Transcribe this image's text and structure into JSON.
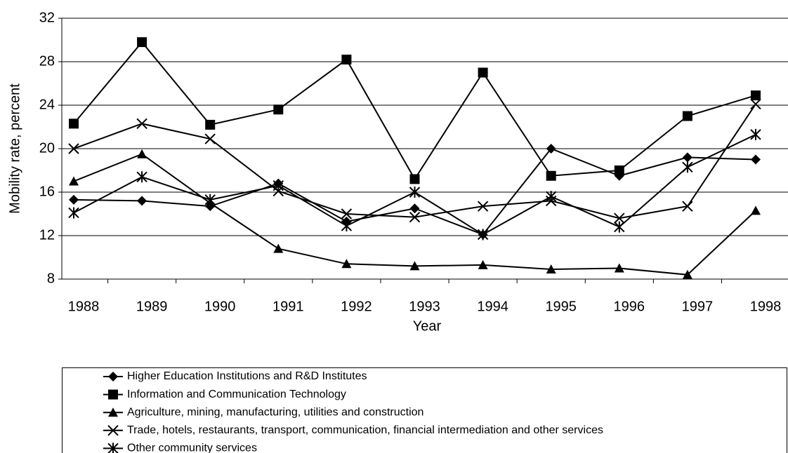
{
  "chart_data": {
    "type": "line",
    "x_label": "Year",
    "y_label": "Mobility rate, percent",
    "categories": [
      "1988",
      "1989",
      "1990",
      "1991",
      "1992",
      "1993",
      "1994",
      "1995",
      "1996",
      "1997",
      "1998"
    ],
    "ylim": [
      8,
      32
    ],
    "yticks": [
      8,
      12,
      16,
      20,
      24,
      28,
      32
    ],
    "grid": true,
    "legend": "bottom",
    "series": [
      {
        "name": "Higher Education Institutions and R&D Institutes",
        "color": "#000000",
        "marker": "diamond",
        "values": [
          15.3,
          15.2,
          14.7,
          16.8,
          13.3,
          14.5,
          12.1,
          20.0,
          17.5,
          19.2,
          19.0
        ]
      },
      {
        "name": "Information and Communication Technology",
        "color": "#000000",
        "marker": "square",
        "values": [
          22.3,
          29.8,
          22.2,
          23.6,
          28.2,
          17.2,
          27.0,
          17.5,
          18.0,
          23.0,
          24.9
        ]
      },
      {
        "name": "Agriculture, mining, manufacturing, utilities and construction",
        "color": "#000000",
        "marker": "triangle",
        "values": [
          17.0,
          19.5,
          15.0,
          10.8,
          9.4,
          9.2,
          9.3,
          8.9,
          9.0,
          8.4,
          14.3
        ]
      },
      {
        "name": "Trade, hotels, restaurants, transport, communication, financial intermediation and other services",
        "color": "#000000",
        "marker": "x",
        "values": [
          20.0,
          22.3,
          20.9,
          16.1,
          14.0,
          13.7,
          14.7,
          15.2,
          13.6,
          14.7,
          24.1
        ]
      },
      {
        "name": "Other community services",
        "color": "#000000",
        "marker": "asterisk",
        "values": [
          14.1,
          17.4,
          15.3,
          16.6,
          12.9,
          16.0,
          12.1,
          15.6,
          12.8,
          18.3,
          21.3
        ]
      }
    ]
  }
}
